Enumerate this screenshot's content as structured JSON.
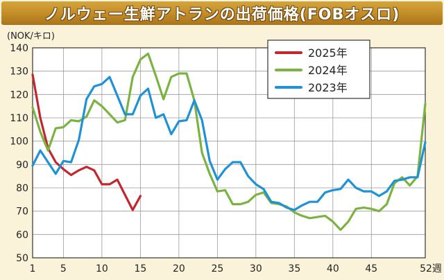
{
  "title": "ノルウェー生鮮アトランの出荷価格(FOBオスロ)",
  "colors": {
    "background": "#faf2d9",
    "title_bar": "#c7902a",
    "series_2025": "#c1272d",
    "series_2024": "#7bb342",
    "series_2023": "#1f92d6"
  },
  "chart_data": {
    "type": "line",
    "y_unit_label": "(NOK/キロ)",
    "x_unit_suffix": "週",
    "xlim": [
      1,
      52
    ],
    "ylim": [
      50,
      140
    ],
    "x_ticks": [
      1,
      5,
      10,
      15,
      20,
      25,
      30,
      35,
      40,
      45,
      52
    ],
    "y_ticks": [
      50,
      60,
      70,
      80,
      90,
      100,
      110,
      120,
      130,
      140
    ],
    "grid": true,
    "legend_position": "top-right",
    "series": [
      {
        "name": "2025年",
        "color": "#c1272d",
        "x": [
          1,
          2,
          3,
          4,
          5,
          6,
          7,
          8,
          9,
          10,
          11,
          12,
          13,
          14,
          15
        ],
        "y": [
          128.5,
          110,
          97,
          91,
          88,
          85.5,
          87.5,
          89,
          87.5,
          81.5,
          81.5,
          83.5,
          77,
          70.5,
          76.5
        ]
      },
      {
        "name": "2024年",
        "color": "#7bb342",
        "x": [
          1,
          2,
          3,
          4,
          5,
          6,
          7,
          8,
          9,
          10,
          11,
          12,
          13,
          14,
          15,
          16,
          17,
          18,
          19,
          20,
          21,
          22,
          23,
          24,
          25,
          26,
          27,
          28,
          29,
          30,
          31,
          32,
          33,
          34,
          35,
          36,
          37,
          38,
          39,
          40,
          41,
          42,
          43,
          44,
          45,
          46,
          47,
          48,
          49,
          50,
          51,
          52
        ],
        "y": [
          114.5,
          104,
          96,
          105.5,
          106,
          109,
          108.5,
          110.5,
          117.5,
          115,
          111.5,
          108,
          109,
          127.5,
          135,
          137.5,
          128,
          118,
          127.5,
          129,
          129,
          117.5,
          95,
          86,
          78.5,
          79,
          73,
          73,
          74,
          77,
          78,
          73.5,
          73,
          72,
          69.5,
          68,
          67,
          67.5,
          68,
          65.5,
          62,
          65.5,
          71,
          71.5,
          71,
          70,
          73,
          82,
          84.5,
          81,
          85,
          116
        ]
      },
      {
        "name": "2023年",
        "color": "#1f92d6",
        "x": [
          1,
          2,
          3,
          4,
          5,
          6,
          7,
          8,
          9,
          10,
          11,
          12,
          13,
          14,
          15,
          16,
          17,
          18,
          19,
          20,
          21,
          22,
          23,
          24,
          25,
          26,
          27,
          28,
          29,
          30,
          31,
          32,
          33,
          34,
          35,
          36,
          37,
          38,
          39,
          40,
          41,
          42,
          43,
          44,
          45,
          46,
          47,
          48,
          49,
          50,
          51,
          52
        ],
        "y": [
          89.5,
          96,
          91,
          86,
          91.5,
          91,
          100.5,
          118,
          123.5,
          124.5,
          127.5,
          119.5,
          111.5,
          111.5,
          119.5,
          122.5,
          110,
          111.5,
          103,
          108.5,
          109,
          117.5,
          109,
          91.5,
          83.5,
          88,
          91,
          91,
          85,
          81.5,
          79.5,
          74,
          73.5,
          71.5,
          70.5,
          72.5,
          74,
          74,
          78,
          79,
          79.5,
          83.5,
          80,
          78.5,
          78.5,
          76.5,
          78.5,
          83,
          83.5,
          84.5,
          84.5,
          99.5
        ]
      }
    ]
  }
}
